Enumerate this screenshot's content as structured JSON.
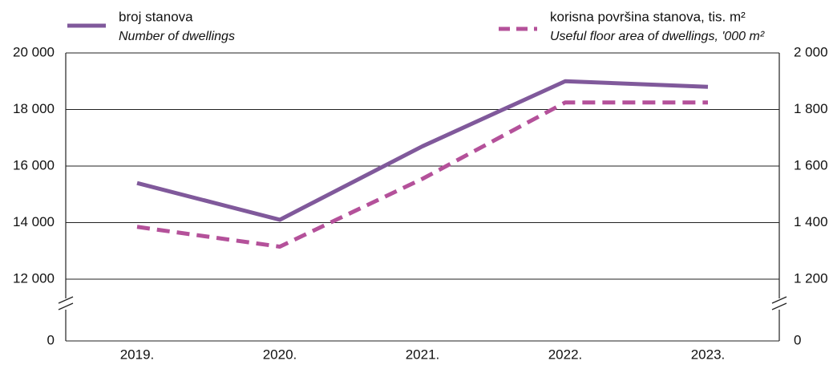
{
  "chart_data": {
    "type": "line",
    "categories": [
      "2019.",
      "2020.",
      "2021.",
      "2022.",
      "2023."
    ],
    "series": [
      {
        "name": "broj stanova",
        "subtitle": "Number of dwellings",
        "color": "#80599b",
        "dash": false,
        "values": [
          15400,
          14100,
          16700,
          19000,
          18800
        ]
      },
      {
        "name": "korisna površina stanova, tis. m²",
        "subtitle": "Useful floor area of dwellings, '000 m²",
        "color": "#b4519a",
        "dash": true,
        "axis": "y2",
        "values": [
          1385,
          1315,
          1555,
          1825,
          1825
        ]
      }
    ],
    "ylim": [
      0,
      20000
    ],
    "yticks": [
      0,
      {
        "value": 12000,
        "label": "12 000"
      },
      {
        "value": 14000,
        "label": "14 000"
      },
      {
        "value": 16000,
        "label": "16 000"
      },
      {
        "value": 18000,
        "label": "18 000"
      },
      {
        "value": 20000,
        "label": "20 000"
      }
    ],
    "y2lim": [
      0,
      2000
    ],
    "y2ticks": [
      0,
      {
        "value": 1200,
        "label": "1 200"
      },
      {
        "value": 1400,
        "label": "1 400"
      },
      {
        "value": 1600,
        "label": "1 600"
      },
      {
        "value": 1800,
        "label": "1 800"
      },
      {
        "value": 2000,
        "label": "2 000"
      }
    ],
    "axis_break": true,
    "grid": true
  }
}
